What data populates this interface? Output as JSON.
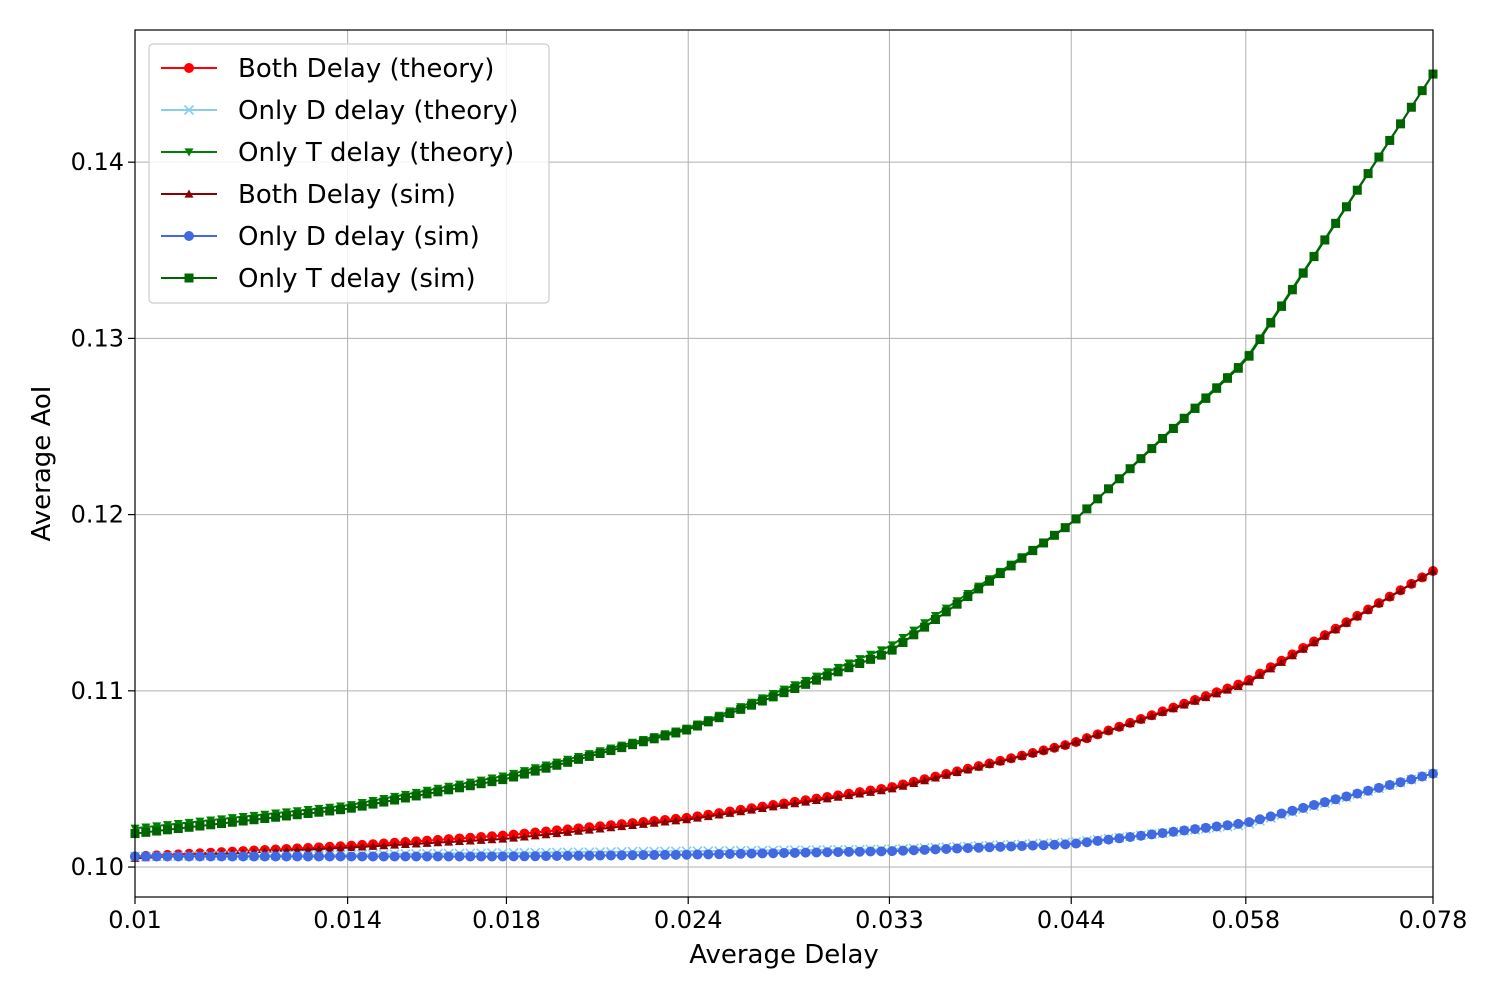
{
  "chart_data": {
    "type": "line",
    "xlabel": "Average Delay",
    "ylabel": "Average AoI",
    "x_scale": "log",
    "xlim": [
      0.01,
      0.078
    ],
    "ylim": [
      0.0983,
      0.1475
    ],
    "xticks": [
      0.01,
      0.014,
      0.018,
      0.024,
      0.033,
      0.044,
      0.058,
      0.078
    ],
    "xtick_labels": [
      "0.01",
      "0.014",
      "0.018",
      "0.024",
      "0.033",
      "0.044",
      "0.058",
      "0.078"
    ],
    "yticks": [
      0.1,
      0.11,
      0.12,
      0.13,
      0.14
    ],
    "ytick_labels": [
      "0.10",
      "0.11",
      "0.12",
      "0.13",
      "0.14"
    ],
    "grid": true,
    "legend_position": "top-left",
    "series": [
      {
        "name": "Both Delay (theory)",
        "color": "#ff0000",
        "marker": "circle",
        "points": [
          [
            0.01,
            0.1006
          ],
          [
            0.014,
            0.1012
          ],
          [
            0.018,
            0.1018
          ],
          [
            0.024,
            0.1028
          ],
          [
            0.033,
            0.1045
          ],
          [
            0.044,
            0.107
          ],
          [
            0.058,
            0.1105
          ],
          [
            0.078,
            0.1168
          ]
        ]
      },
      {
        "name": "Only D delay (theory)",
        "color": "#87ceeb",
        "marker": "x",
        "points": [
          [
            0.01,
            0.1006
          ],
          [
            0.014,
            0.1007
          ],
          [
            0.018,
            0.1008
          ],
          [
            0.024,
            0.1009
          ],
          [
            0.033,
            0.101
          ],
          [
            0.044,
            0.1014
          ],
          [
            0.058,
            0.1024
          ],
          [
            0.078,
            0.1053
          ]
        ]
      },
      {
        "name": "Only T delay (theory)",
        "color": "#008000",
        "marker": "triangle-down",
        "points": [
          [
            0.01,
            0.1022
          ],
          [
            0.014,
            0.1035
          ],
          [
            0.018,
            0.1052
          ],
          [
            0.024,
            0.1079
          ],
          [
            0.033,
            0.1125
          ],
          [
            0.044,
            0.1195
          ],
          [
            0.058,
            0.1288
          ],
          [
            0.078,
            0.145
          ]
        ]
      },
      {
        "name": "Both Delay (sim)",
        "color": "#8b0000",
        "marker": "triangle-up",
        "points": [
          [
            0.01,
            0.1005
          ],
          [
            0.014,
            0.1011
          ],
          [
            0.018,
            0.1016
          ],
          [
            0.024,
            0.1027
          ],
          [
            0.033,
            0.1044
          ],
          [
            0.044,
            0.107
          ],
          [
            0.058,
            0.1104
          ],
          [
            0.078,
            0.1168
          ]
        ]
      },
      {
        "name": "Only D delay (sim)",
        "color": "#4169e1",
        "marker": "circle",
        "points": [
          [
            0.01,
            0.1006
          ],
          [
            0.014,
            0.1006
          ],
          [
            0.018,
            0.1006
          ],
          [
            0.024,
            0.1007
          ],
          [
            0.033,
            0.1009
          ],
          [
            0.044,
            0.1013
          ],
          [
            0.058,
            0.1025
          ],
          [
            0.078,
            0.1053
          ]
        ]
      },
      {
        "name": "Only T delay (sim)",
        "color": "#006400",
        "marker": "square",
        "points": [
          [
            0.01,
            0.1019
          ],
          [
            0.014,
            0.1033
          ],
          [
            0.018,
            0.105
          ],
          [
            0.024,
            0.1078
          ],
          [
            0.033,
            0.1122
          ],
          [
            0.044,
            0.1195
          ],
          [
            0.058,
            0.1287
          ],
          [
            0.078,
            0.145
          ]
        ]
      }
    ]
  }
}
